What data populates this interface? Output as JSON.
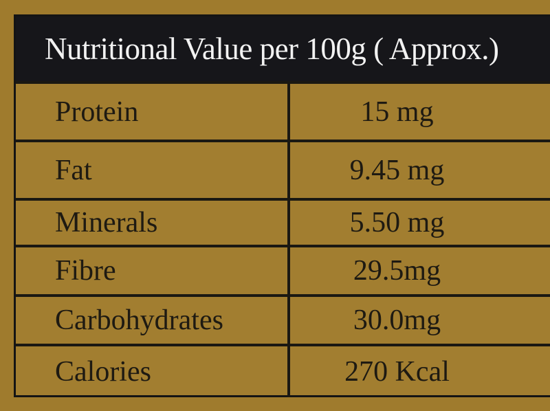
{
  "title": "Nutritional Value per 100g ( Approx.)",
  "rows": [
    {
      "nutrient": "Protein",
      "value": "15 mg"
    },
    {
      "nutrient": "Fat",
      "value": "9.45 mg"
    },
    {
      "nutrient": "Minerals",
      "value": "5.50 mg"
    },
    {
      "nutrient": "Fibre",
      "value": "29.5mg"
    },
    {
      "nutrient": "Carbohydrates",
      "value": "30.0mg"
    },
    {
      "nutrient": "Calories",
      "value": "270 Kcal"
    }
  ],
  "colors": {
    "background": "#9f7b2d",
    "header": "#16161a",
    "text": "#1e1a12"
  }
}
